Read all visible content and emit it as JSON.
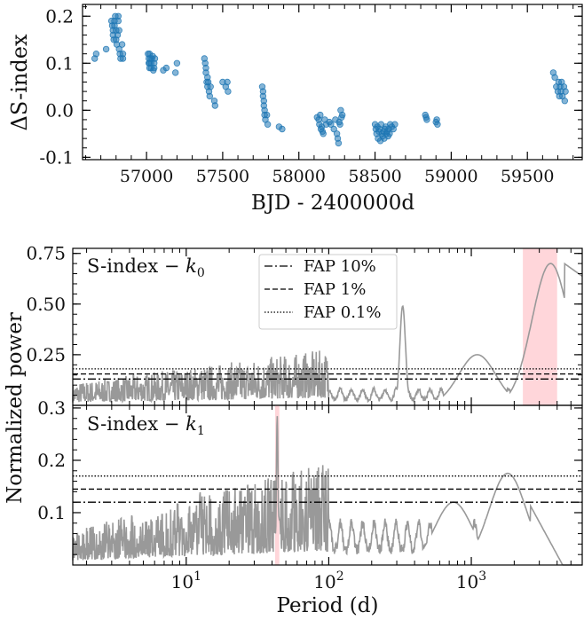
{
  "chart_data": [
    {
      "type": "scatter",
      "title": "",
      "xlabel": "BJD - 2400000d",
      "ylabel": "ΔS-index",
      "xlim": [
        56580,
        59860
      ],
      "ylim": [
        -0.105,
        0.225
      ],
      "xticks": [
        57000,
        57500,
        58000,
        58500,
        59000,
        59500
      ],
      "xtick_labels": [
        "57000",
        "57500",
        "58000",
        "58500",
        "59000",
        "59500"
      ],
      "yticks": [
        -0.1,
        0.0,
        0.1,
        0.2
      ],
      "ytick_labels": [
        "-0.1",
        "0.0",
        "0.1",
        "0.2"
      ],
      "marker_color": "#1f77b4",
      "grid": false,
      "x": [
        56660,
        56670,
        56735,
        56770,
        56775,
        56780,
        56780,
        56785,
        56790,
        56790,
        56795,
        56800,
        56800,
        56805,
        56810,
        56815,
        56815,
        56820,
        56820,
        56825,
        56830,
        56840,
        56845,
        56845,
        57010,
        57015,
        57015,
        57020,
        57020,
        57020,
        57025,
        57030,
        57030,
        57035,
        57040,
        57045,
        57050,
        57050,
        57055,
        57110,
        57130,
        57190,
        57200,
        57380,
        57385,
        57390,
        57390,
        57395,
        57400,
        57400,
        57405,
        57410,
        57415,
        57420,
        57445,
        57450,
        57500,
        57520,
        57530,
        57535,
        57760,
        57765,
        57765,
        57770,
        57770,
        57775,
        57775,
        57780,
        57790,
        57795,
        57870,
        57890,
        58120,
        58130,
        58135,
        58140,
        58145,
        58150,
        58155,
        58160,
        58170,
        58180,
        58200,
        58210,
        58230,
        58240,
        58250,
        58255,
        58260,
        58265,
        58270,
        58275,
        58280,
        58285,
        58500,
        58505,
        58510,
        58515,
        58520,
        58525,
        58530,
        58535,
        58540,
        58545,
        58550,
        58555,
        58560,
        58565,
        58570,
        58575,
        58580,
        58585,
        58590,
        58595,
        58600,
        58610,
        58620,
        58630,
        58830,
        58835,
        58840,
        58900,
        58905,
        58910,
        59670,
        59680,
        59690,
        59700,
        59705,
        59710,
        59715,
        59720,
        59725,
        59730,
        59740,
        59745,
        59750
      ],
      "y": [
        0.11,
        0.12,
        0.13,
        0.19,
        0.18,
        0.17,
        0.16,
        0.15,
        0.19,
        0.18,
        0.2,
        0.15,
        0.17,
        0.14,
        0.16,
        0.19,
        0.2,
        0.17,
        0.13,
        0.12,
        0.11,
        0.14,
        0.12,
        0.11,
        0.12,
        0.1,
        0.11,
        0.09,
        0.1,
        0.12,
        0.11,
        0.09,
        0.1,
        0.11,
        0.115,
        0.085,
        0.09,
        0.1,
        0.11,
        0.085,
        0.09,
        0.08,
        0.1,
        0.11,
        0.1,
        0.08,
        0.09,
        0.06,
        0.05,
        0.07,
        0.06,
        0.04,
        0.03,
        0.05,
        0.02,
        0.01,
        0.06,
        0.05,
        0.06,
        0.04,
        0.05,
        0.03,
        0.04,
        0.02,
        0.01,
        0.0,
        -0.01,
        -0.02,
        -0.01,
        -0.03,
        -0.035,
        -0.04,
        -0.015,
        -0.02,
        -0.03,
        -0.01,
        -0.04,
        -0.035,
        -0.045,
        -0.05,
        -0.02,
        -0.03,
        -0.025,
        -0.03,
        -0.04,
        -0.02,
        -0.05,
        -0.06,
        -0.07,
        -0.025,
        -0.03,
        0.0,
        -0.015,
        -0.01,
        -0.03,
        -0.04,
        -0.05,
        -0.035,
        -0.06,
        -0.045,
        -0.04,
        -0.065,
        -0.03,
        -0.05,
        -0.055,
        -0.045,
        -0.06,
        -0.04,
        -0.035,
        -0.05,
        -0.045,
        -0.055,
        -0.04,
        -0.05,
        -0.03,
        -0.035,
        -0.04,
        -0.03,
        -0.01,
        -0.015,
        -0.02,
        -0.025,
        -0.02,
        -0.03,
        0.08,
        0.07,
        0.05,
        0.04,
        0.06,
        0.03,
        0.05,
        0.04,
        0.06,
        0.03,
        0.05,
        0.02,
        0.04
      ]
    },
    {
      "type": "line",
      "title": "",
      "panel_label": "S-index − ",
      "panel_label_sym": "k",
      "panel_label_sub": "0",
      "xlabel": "",
      "ylabel": "Normalized power",
      "x_scale": "log",
      "xlim": [
        1.6,
        6000
      ],
      "ylim": [
        0.0,
        0.775
      ],
      "yticks": [
        0.25,
        0.5,
        0.75
      ],
      "ytick_labels": [
        "0.25",
        "0.50",
        "0.75"
      ],
      "highlight_period_range": [
        2300,
        4000
      ],
      "highlight_color": "#ffd6da",
      "line_color": "#999999",
      "fap_levels": [
        {
          "name": "FAP 10%",
          "value": 0.13,
          "style": "dashdot"
        },
        {
          "name": "FAP 1%",
          "value": 0.155,
          "style": "dashed"
        },
        {
          "name": "FAP 0.1%",
          "value": 0.18,
          "style": "dotted"
        }
      ],
      "legend_placement": "upper-center",
      "key_peaks": [
        {
          "period": 12.5,
          "power": 0.16
        },
        {
          "period": 330,
          "power": 0.49
        },
        {
          "period": 1100,
          "power": 0.25
        },
        {
          "period": 3600,
          "power": 0.7
        }
      ]
    },
    {
      "type": "line",
      "title": "",
      "panel_label": "S-index − ",
      "panel_label_sym": "k",
      "panel_label_sub": "1",
      "xlabel": "Period (d)",
      "ylabel": "",
      "x_scale": "log",
      "xlim": [
        1.6,
        6000
      ],
      "ylim": [
        0.0,
        0.305
      ],
      "xticks": [
        10,
        100,
        1000
      ],
      "xtick_base": "10",
      "xtick_exponents": [
        "1",
        "2",
        "3"
      ],
      "yticks": [
        0.1,
        0.2,
        0.3
      ],
      "ytick_labels": [
        "0.1",
        "0.2",
        "0.3"
      ],
      "highlight_period_range": [
        42,
        45
      ],
      "highlight_color": "#ffd6da",
      "line_color": "#999999",
      "fap_levels": [
        {
          "name": "FAP 10%",
          "value": 0.12,
          "style": "dashdot"
        },
        {
          "name": "FAP 1%",
          "value": 0.145,
          "style": "dashed"
        },
        {
          "name": "FAP 0.1%",
          "value": 0.17,
          "style": "dotted"
        }
      ],
      "key_peaks": [
        {
          "period": 12.5,
          "power": 0.14
        },
        {
          "period": 43.5,
          "power": 0.285
        },
        {
          "period": 750,
          "power": 0.12
        },
        {
          "period": 1800,
          "power": 0.175
        }
      ]
    }
  ]
}
